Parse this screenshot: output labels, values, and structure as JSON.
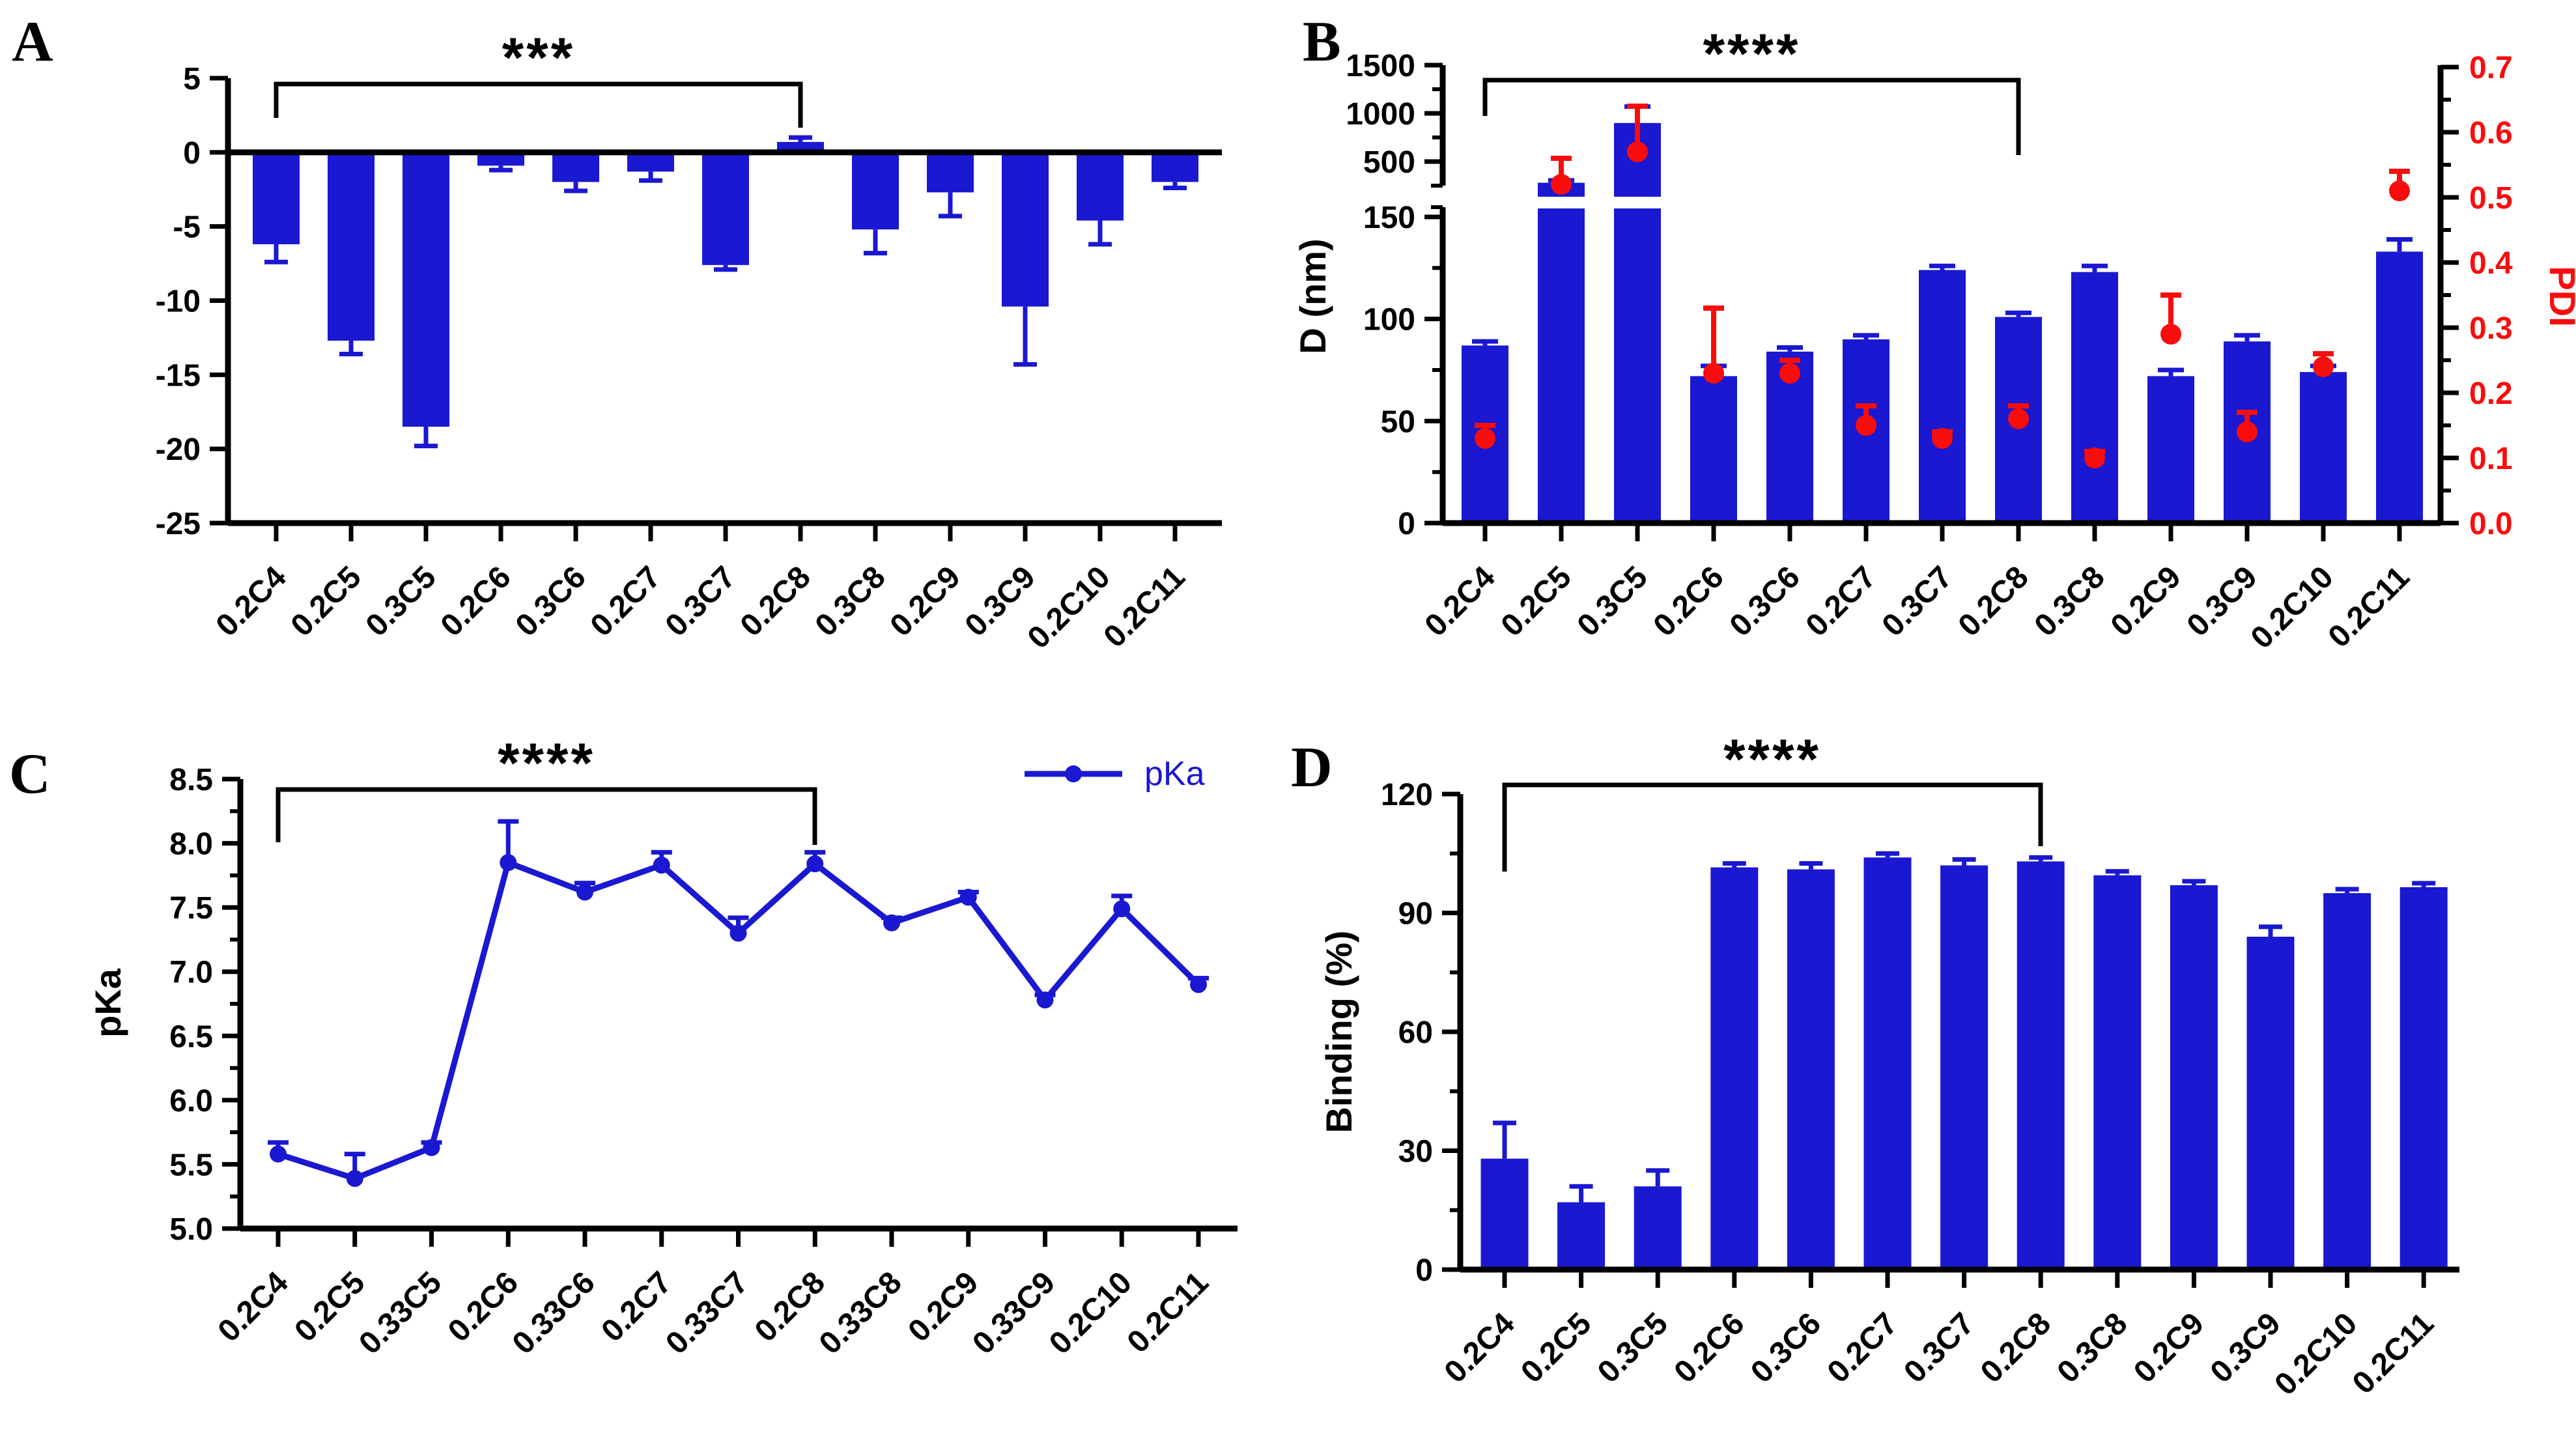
{
  "colors": {
    "bar_blue": "#1a18d0",
    "series_blue": "#1a18d0",
    "pdi_red": "#f80d0d",
    "ink": "#000000",
    "background": "#ffffff"
  },
  "chart_data": [
    {
      "type": "bar",
      "panel_label": "A",
      "significance": {
        "label": "***",
        "from": "0.2C4",
        "to": "0.2C8"
      },
      "categories": [
        "0.2C4",
        "0.2C5",
        "0.3C5",
        "0.2C6",
        "0.3C6",
        "0.2C7",
        "0.3C7",
        "0.2C8",
        "0.3C8",
        "0.2C9",
        "0.3C9",
        "0.2C10",
        "0.2C11"
      ],
      "values": [
        -6.2,
        -12.7,
        -18.5,
        -0.9,
        -2.0,
        -1.3,
        -7.6,
        0.7,
        -5.2,
        -2.7,
        -10.4,
        -4.6,
        -2.0
      ],
      "errors": [
        1.2,
        0.9,
        1.3,
        0.3,
        0.6,
        0.6,
        0.3,
        0.3,
        1.6,
        1.6,
        3.9,
        1.6,
        0.4
      ],
      "xlabel": "",
      "ylabel": "",
      "ylim": [
        -25,
        5
      ],
      "ytick_labels": [
        "5",
        "0",
        "-5",
        "-10",
        "-15",
        "-20",
        "-25"
      ],
      "ytick_values": [
        5,
        0,
        -5,
        -10,
        -15,
        -20,
        -25
      ],
      "grid": "off",
      "zero_line": true
    },
    {
      "type": "bar-dual-axis-broken",
      "panel_label": "B",
      "significance": {
        "label": "****",
        "from": "0.2C4",
        "to": "0.2C8"
      },
      "categories": [
        "0.2C4",
        "0.2C5",
        "0.3C5",
        "0.2C6",
        "0.3C6",
        "0.2C7",
        "0.3C7",
        "0.2C8",
        "0.3C8",
        "0.2C9",
        "0.3C9",
        "0.2C10",
        "0.2C11"
      ],
      "series": [
        {
          "name": "D (nm)",
          "axis": "left",
          "values": [
            87,
            280,
            900,
            72,
            84,
            90,
            124,
            101,
            123,
            72,
            89,
            74,
            133
          ],
          "errors": [
            2,
            25,
            170,
            5,
            2,
            2,
            2,
            2,
            3,
            3,
            3,
            3,
            6
          ]
        },
        {
          "name": "PDI",
          "axis": "right",
          "values": [
            0.13,
            0.52,
            0.57,
            0.23,
            0.23,
            0.15,
            0.13,
            0.16,
            0.1,
            0.29,
            0.14,
            0.24,
            0.51
          ],
          "errors": [
            0.02,
            0.04,
            0.07,
            0.1,
            0.02,
            0.03,
            0.01,
            0.02,
            0.01,
            0.06,
            0.03,
            0.02,
            0.03
          ]
        }
      ],
      "left_axis": {
        "label": "D (nm)",
        "break": true,
        "lower_range": [
          0,
          150
        ],
        "lower_tick_labels": [
          "0",
          "50",
          "100",
          "150"
        ],
        "lower_tick_values": [
          0,
          50,
          100,
          150
        ],
        "lower_minor_values": [
          25,
          75,
          125
        ],
        "upper_range": [
          250,
          1500
        ],
        "upper_tick_labels": [
          "500",
          "1000",
          "1500"
        ],
        "upper_tick_values": [
          500,
          1000,
          1500
        ],
        "upper_minor_values": [
          750,
          1250
        ]
      },
      "right_axis": {
        "label": "PDI",
        "range": [
          0.0,
          0.7
        ],
        "tick_labels": [
          "0.0",
          "0.1",
          "0.2",
          "0.3",
          "0.4",
          "0.5",
          "0.6",
          "0.7"
        ],
        "tick_values": [
          0.0,
          0.1,
          0.2,
          0.3,
          0.4,
          0.5,
          0.6,
          0.7
        ],
        "minor_values": [
          0.05,
          0.15,
          0.25,
          0.35,
          0.45,
          0.55,
          0.65
        ]
      },
      "grid": "off"
    },
    {
      "type": "line",
      "panel_label": "C",
      "significance": {
        "label": "****",
        "from": "0.2C4",
        "to": "0.2C8"
      },
      "legend": {
        "label": "pKa",
        "position": "top-right"
      },
      "categories": [
        "0.2C4",
        "0.2C5",
        "0.33C5",
        "0.2C6",
        "0.33C6",
        "0.2C7",
        "0.33C7",
        "0.2C8",
        "0.33C8",
        "0.2C9",
        "0.33C9",
        "0.2C10",
        "0.2C11"
      ],
      "values": [
        5.58,
        5.39,
        5.63,
        7.85,
        7.62,
        7.83,
        7.3,
        7.84,
        7.38,
        7.58,
        6.78,
        7.49,
        6.9
      ],
      "errors": [
        0.09,
        0.19,
        0.04,
        0.32,
        0.07,
        0.1,
        0.12,
        0.09,
        0.04,
        0.04,
        0.04,
        0.1,
        0.05
      ],
      "xlabel": "",
      "ylabel": "pKa",
      "ylim": [
        5.0,
        8.5
      ],
      "ytick_labels": [
        "8.5",
        "8.0",
        "7.5",
        "7.0",
        "6.5",
        "6.0",
        "5.5",
        "5.0"
      ],
      "ytick_values": [
        8.5,
        8.0,
        7.5,
        7.0,
        6.5,
        6.0,
        5.5,
        5.0
      ],
      "yminor_values": [
        8.25,
        7.75,
        7.25,
        6.75,
        6.25,
        5.75,
        5.25
      ],
      "grid": "off"
    },
    {
      "type": "bar",
      "panel_label": "D",
      "significance": {
        "label": "****",
        "from": "0.2C4",
        "to": "0.2C8"
      },
      "categories": [
        "0.2C4",
        "0.2C5",
        "0.3C5",
        "0.2C6",
        "0.3C6",
        "0.2C7",
        "0.3C7",
        "0.2C8",
        "0.3C8",
        "0.2C9",
        "0.3C9",
        "0.2C10",
        "0.2C11"
      ],
      "values": [
        28,
        17,
        21,
        101.5,
        101,
        104,
        102,
        103,
        99.5,
        97,
        84,
        95,
        96.5
      ],
      "errors": [
        9,
        4,
        4,
        1,
        1.5,
        1,
        1.5,
        1,
        1,
        1,
        2.5,
        1,
        1
      ],
      "xlabel": "",
      "ylabel": "Binding (%)",
      "ylim": [
        0,
        120
      ],
      "ytick_labels": [
        "0",
        "30",
        "60",
        "90",
        "120"
      ],
      "ytick_values": [
        0,
        30,
        60,
        90,
        120
      ],
      "yminor_values": [
        15,
        45,
        75,
        105
      ],
      "grid": "off",
      "zero_line": false
    }
  ]
}
